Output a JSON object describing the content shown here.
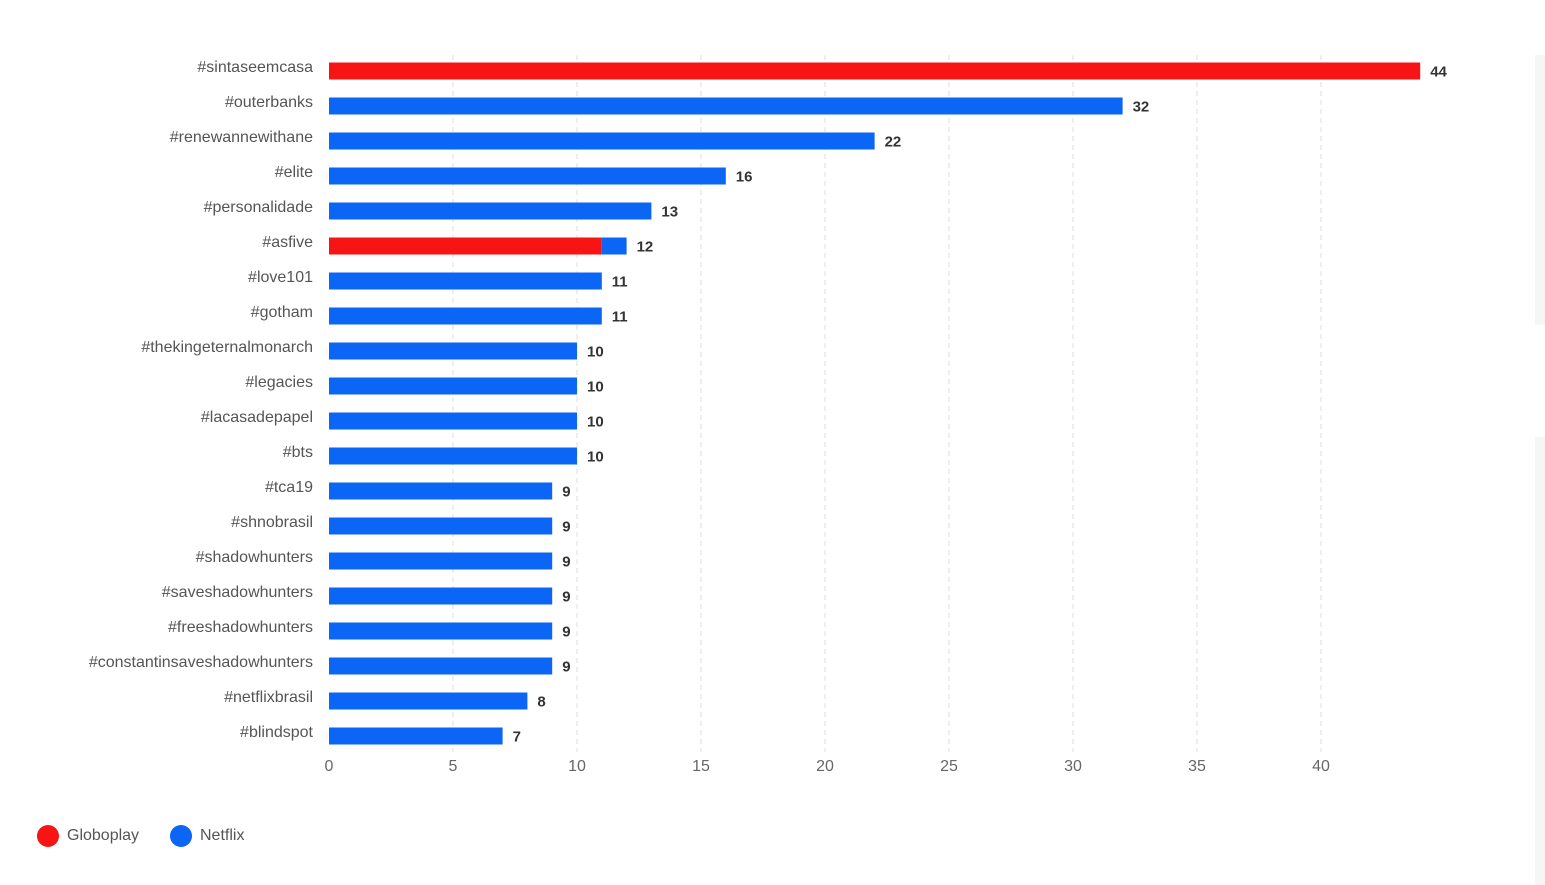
{
  "chart_data": {
    "type": "bar",
    "orientation": "horizontal",
    "stacked": true,
    "categories": [
      "#sintaseemcasa",
      "#outerbanks",
      "#renewannewithane",
      "#elite",
      "#personalidade",
      "#asfive",
      "#love101",
      "#gotham",
      "#thekingeternalmonarch",
      "#legacies",
      "#lacasadepapel",
      "#bts",
      "#tca19",
      "#shnobrasil",
      "#shadowhunters",
      "#saveshadowhunters",
      "#freeshadowhunters",
      "#constantinsaveshadowhunters",
      "#netflixbrasil",
      "#blindspot"
    ],
    "series": [
      {
        "name": "Globoplay",
        "color": "#f71414",
        "values": [
          44,
          0,
          0,
          0,
          0,
          11,
          0,
          0,
          0,
          0,
          0,
          0,
          0,
          0,
          0,
          0,
          0,
          0,
          0,
          0
        ]
      },
      {
        "name": "Netflix",
        "color": "#0b65f5",
        "values": [
          0,
          32,
          22,
          16,
          13,
          1,
          11,
          11,
          10,
          10,
          10,
          10,
          9,
          9,
          9,
          9,
          9,
          9,
          8,
          7
        ]
      }
    ],
    "totals": [
      44,
      32,
      22,
      16,
      13,
      12,
      11,
      11,
      10,
      10,
      10,
      10,
      9,
      9,
      9,
      9,
      9,
      9,
      8,
      7
    ],
    "x_ticks": [
      0,
      5,
      10,
      15,
      20,
      25,
      30,
      35,
      40
    ],
    "xlim": [
      0,
      44
    ],
    "grid": {
      "vertical": true,
      "style": "dashed"
    },
    "legend": "bottom-left"
  }
}
